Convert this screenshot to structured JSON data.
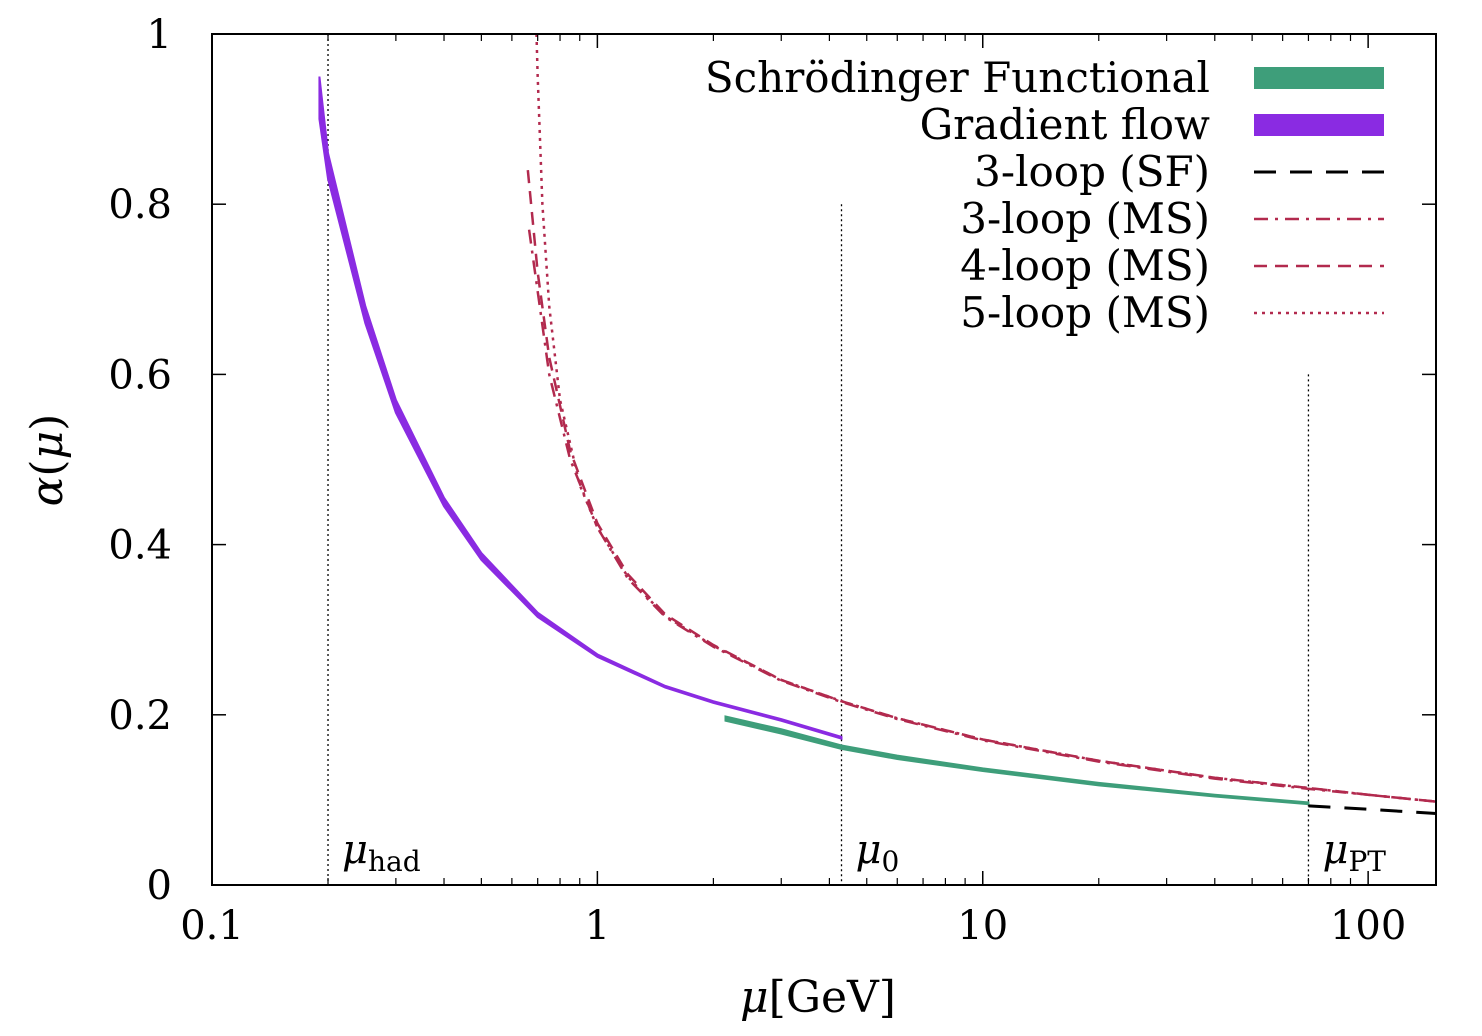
{
  "chart_data": {
    "type": "line",
    "title": "",
    "xlabel": "μ[GeV]",
    "ylabel": "α(μ)",
    "xscale": "log",
    "xlim": [
      0.1,
      150
    ],
    "ylim": [
      0,
      1
    ],
    "x_ticks": [
      {
        "value": 0.1,
        "label": "0.1"
      },
      {
        "value": 1,
        "label": "1"
      },
      {
        "value": 10,
        "label": "10"
      },
      {
        "value": 100,
        "label": "100"
      }
    ],
    "y_ticks": [
      {
        "value": 0,
        "label": "0"
      },
      {
        "value": 0.2,
        "label": "0.2"
      },
      {
        "value": 0.4,
        "label": "0.4"
      },
      {
        "value": 0.6,
        "label": "0.6"
      },
      {
        "value": 0.8,
        "label": "0.8"
      },
      {
        "value": 1,
        "label": "1"
      }
    ],
    "legend_position": "top-right",
    "series": [
      {
        "name": "Schrödinger Functional",
        "style": "band",
        "color": "#3e9e7a",
        "x": [
          2.15,
          3,
          4.3,
          6,
          10,
          20,
          40,
          70
        ],
        "y_low": [
          0.193,
          0.178,
          0.16,
          0.148,
          0.134,
          0.117,
          0.104,
          0.095
        ],
        "y_high": [
          0.198,
          0.183,
          0.164,
          0.152,
          0.137,
          0.12,
          0.106,
          0.097
        ]
      },
      {
        "name": "Gradient flow",
        "style": "band",
        "color": "#8a2be2",
        "x": [
          0.19,
          0.2,
          0.25,
          0.3,
          0.4,
          0.5,
          0.7,
          1.0,
          1.5,
          2.0,
          3.0,
          4.3
        ],
        "y_low": [
          0.9,
          0.83,
          0.66,
          0.555,
          0.445,
          0.382,
          0.315,
          0.268,
          0.232,
          0.214,
          0.193,
          0.172
        ],
        "y_high": [
          0.95,
          0.86,
          0.68,
          0.57,
          0.455,
          0.39,
          0.32,
          0.271,
          0.234,
          0.216,
          0.195,
          0.174
        ]
      },
      {
        "name": "3-loop (SF)",
        "style": "dashed",
        "color": "#000000",
        "x": [
          70,
          100,
          150
        ],
        "y": [
          0.093,
          0.089,
          0.084
        ]
      },
      {
        "name": "3-loop (MS)",
        "style": "dash-dot",
        "color": "#b22a4e",
        "x": [
          0.665,
          0.75,
          0.85,
          1.0,
          1.2,
          1.5,
          2.0,
          3.0,
          4.3,
          6,
          10,
          20,
          40,
          70,
          100,
          150
        ],
        "y": [
          0.77,
          0.6,
          0.5,
          0.42,
          0.36,
          0.315,
          0.28,
          0.24,
          0.215,
          0.195,
          0.17,
          0.145,
          0.125,
          0.113,
          0.106,
          0.098
        ]
      },
      {
        "name": "4-loop (MS)",
        "style": "dashed",
        "color": "#b22a4e",
        "x": [
          0.66,
          0.7,
          0.75,
          0.85,
          1.0,
          1.2,
          1.5,
          2.0,
          3.0,
          4.3,
          6,
          10,
          20,
          40,
          70,
          100,
          150
        ],
        "y": [
          0.84,
          0.72,
          0.62,
          0.51,
          0.425,
          0.365,
          0.318,
          0.282,
          0.241,
          0.216,
          0.196,
          0.171,
          0.146,
          0.126,
          0.114,
          0.106,
          0.098
        ]
      },
      {
        "name": "5-loop (MS)",
        "style": "dotted",
        "color": "#b22a4e",
        "x": [
          0.695,
          0.7,
          0.72,
          0.75,
          0.8,
          0.9,
          1.0,
          1.2,
          1.5,
          2.0,
          3.0,
          4.3,
          6,
          10,
          20,
          40,
          70,
          100,
          150
        ],
        "y": [
          1.0,
          0.95,
          0.8,
          0.68,
          0.57,
          0.47,
          0.42,
          0.362,
          0.316,
          0.281,
          0.241,
          0.216,
          0.196,
          0.171,
          0.146,
          0.126,
          0.114,
          0.106,
          0.098
        ]
      }
    ],
    "reference_lines": [
      {
        "x": 0.2,
        "y_top": 1.0,
        "label": "μ",
        "sub": "had"
      },
      {
        "x": 4.3,
        "y_top": 0.8,
        "label": "μ",
        "sub": "0"
      },
      {
        "x": 70,
        "y_top": 0.6,
        "label": "μ",
        "sub": "PT"
      }
    ]
  }
}
